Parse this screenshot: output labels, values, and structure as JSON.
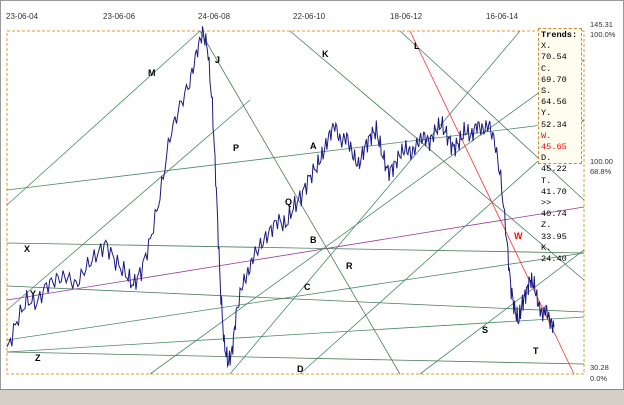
{
  "chart_data": {
    "type": "line",
    "x_ticks": [
      "23-06-04",
      "23-06-06",
      "24-06-08",
      "22-06-10",
      "18-06-12",
      "16-06-14"
    ],
    "y_right_labels": [
      {
        "value": "145.31",
        "pct": "100.0%"
      },
      {
        "value": "100.00",
        "pct": "68.8%"
      },
      {
        "value": "30.28",
        "pct": "0.0%"
      }
    ],
    "ylim": [
      30.28,
      145.31
    ],
    "trend_line_labels": [
      "M",
      "J",
      "K",
      "L",
      "P",
      "A",
      "Q",
      "B",
      "X",
      "R",
      "W",
      "C",
      "Y",
      "S",
      "T",
      "Z",
      "D"
    ],
    "legend": {
      "title": "Trends:",
      "items": [
        {
          "text": "X. 70.54",
          "color": "#000000"
        },
        {
          "text": "C. 69.70",
          "color": "#000000"
        },
        {
          "text": "S. 64.56",
          "color": "#000000"
        },
        {
          "text": "Y. 52.34",
          "color": "#000000"
        },
        {
          "text": "W. 45.65",
          "color": "#ff0000"
        },
        {
          "text": "D. 45.22",
          "color": "#000000"
        },
        {
          "text": "T. 41.70",
          "color": "#000000"
        },
        {
          "text": ">> 40.74",
          "color": "#000000"
        },
        {
          "text": "Z. 33.95",
          "color": "#000000"
        },
        {
          "text": "K. 24.40",
          "color": "#000000"
        }
      ]
    },
    "series": [
      {
        "points": [
          [
            0,
            38
          ],
          [
            10,
            48
          ],
          [
            20,
            55
          ],
          [
            30,
            54
          ],
          [
            40,
            60
          ],
          [
            50,
            62
          ],
          [
            60,
            63
          ],
          [
            70,
            60
          ],
          [
            80,
            66
          ],
          [
            90,
            70
          ],
          [
            100,
            74
          ],
          [
            110,
            68
          ],
          [
            120,
            64
          ],
          [
            128,
            60
          ],
          [
            136,
            65
          ],
          [
            145,
            75
          ],
          [
            155,
            90
          ],
          [
            165,
            110
          ],
          [
            175,
            120
          ],
          [
            185,
            128
          ],
          [
            192,
            138
          ],
          [
            198,
            145
          ],
          [
            203,
            140
          ],
          [
            208,
            120
          ],
          [
            212,
            92
          ],
          [
            216,
            60
          ],
          [
            220,
            40
          ],
          [
            224,
            34
          ],
          [
            228,
            38
          ],
          [
            232,
            50
          ],
          [
            238,
            60
          ],
          [
            244,
            64
          ],
          [
            250,
            70
          ],
          [
            258,
            74
          ],
          [
            266,
            78
          ],
          [
            274,
            82
          ],
          [
            282,
            80
          ],
          [
            290,
            86
          ],
          [
            298,
            90
          ],
          [
            306,
            96
          ],
          [
            314,
            100
          ],
          [
            320,
            104
          ],
          [
            326,
            110
          ],
          [
            332,
            114
          ],
          [
            338,
            108
          ],
          [
            344,
            110
          ],
          [
            350,
            104
          ],
          [
            356,
            100
          ],
          [
            362,
            106
          ],
          [
            368,
            110
          ],
          [
            374,
            112
          ],
          [
            380,
            104
          ],
          [
            386,
            98
          ],
          [
            392,
            100
          ],
          [
            398,
            104
          ],
          [
            404,
            106
          ],
          [
            410,
            104
          ],
          [
            416,
            108
          ],
          [
            422,
            110
          ],
          [
            428,
            108
          ],
          [
            434,
            112
          ],
          [
            440,
            114
          ],
          [
            446,
            110
          ],
          [
            452,
            106
          ],
          [
            458,
            108
          ],
          [
            464,
            112
          ],
          [
            470,
            110
          ],
          [
            476,
            114
          ],
          [
            482,
            112
          ],
          [
            488,
            114
          ],
          [
            494,
            108
          ],
          [
            500,
            96
          ],
          [
            506,
            76
          ],
          [
            510,
            60
          ],
          [
            514,
            52
          ],
          [
            518,
            48
          ],
          [
            522,
            54
          ],
          [
            526,
            58
          ],
          [
            530,
            62
          ],
          [
            534,
            60
          ],
          [
            538,
            54
          ],
          [
            542,
            50
          ],
          [
            546,
            52
          ],
          [
            550,
            48
          ],
          [
            554,
            46
          ]
        ],
        "color": "#1a1a80"
      }
    ],
    "colors": {
      "price": "#1a1a80",
      "trend": "#4a8a6a",
      "accent": "#ff0000",
      "frame": "#e09a30",
      "purple": "#9a3a9a"
    }
  }
}
